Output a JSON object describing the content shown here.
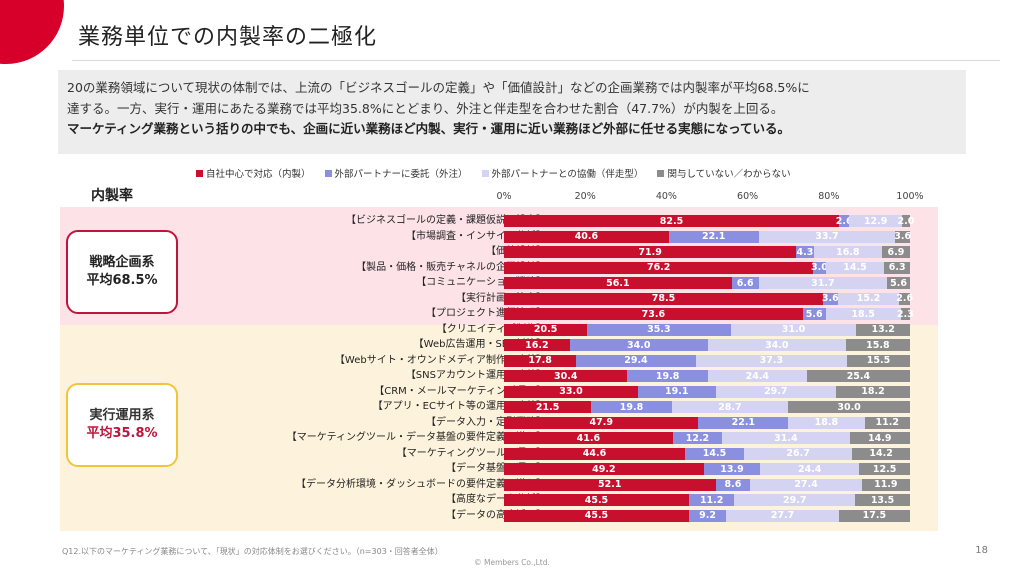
{
  "title": "業務単位での内製率の二極化",
  "summary": {
    "line1": "20の業務領域について現状の体制では、上流の「ビジネスゴールの定義」や「価値設計」などの企画業務では内製率が平均68.5%に",
    "line2": "達する。一方、実行・運用にあたる業務では平均35.8%にとどまり、外注と伴走型を合わせた割合（47.7%）が内製を上回る。",
    "line3": "マーケティング業務という括りの中でも、企画に近い業務ほど内製、実行・運用に近い業務ほど外部に任せる実態になっている。"
  },
  "share_label": "内製率",
  "groups": {
    "strategy": {
      "name": "戦略企画系",
      "avg": "平均68.5%"
    },
    "execution": {
      "name": "実行運用系",
      "avg": "平均35.8%"
    }
  },
  "footnote": "Q12.以下のマーケティング業務について、「現状」の対応体制をお選びください。（n=303・回答者全体）",
  "copyright": "© Members Co.,Ltd.",
  "page_number": "18",
  "colors": {
    "inhouse": "#c8102e",
    "outsource": "#8b8fe0",
    "partner": "#d4d4f2",
    "none": "#8c8c8c"
  },
  "chart_data": {
    "type": "bar",
    "orientation": "horizontal",
    "stacked": true,
    "percent_axis": {
      "ticks": [
        "0%",
        "20%",
        "40%",
        "60%",
        "80%",
        "100%"
      ],
      "range": [
        0,
        100
      ]
    },
    "legend_position": "top",
    "series": [
      {
        "name": "自社中心で対応（内製）",
        "color": "#c8102e",
        "text_color": "#ffffff"
      },
      {
        "name": "外部パートナーに委託（外注）",
        "color": "#8b8fe0",
        "text_color": "#ffffff"
      },
      {
        "name": "外部パートナーとの協働（伴走型）",
        "color": "#d4d4f2",
        "text_color": "#ffffff"
      },
      {
        "name": "関与していない／わからない",
        "color": "#8c8c8c",
        "text_color": "#ffffff"
      }
    ],
    "categories": [
      "【ビジネスゴールの定義・課題仮説の設定】",
      "【市場調査・インサイト分析】",
      "【価値設計】",
      "【製品・価格・販売チャネルの企画設計】",
      "【コミュニケーション戦略】",
      "【実行計画の策定】",
      "【プロジェクト進行管理】",
      "【クリエイティブ制作】",
      "【Web広告運用・SEO対策】",
      "【Webサイト・オウンドメディア制作・改善】",
      "【SNSアカウント運用・改善】",
      "【CRM・メールマーケティング運用】",
      "【アプリ・ECサイト等の運用・改善】",
      "【データ入力・定型業務】",
      "【マーケティングツール・データ基盤の要件定義・導入】",
      "【マーケティングツールの運用】",
      "【データ基盤の運用】",
      "【データ分析環境・ダッシュボードの要件定義・導入】",
      "【高度なデータ分析】",
      "【データの高度活用】"
    ],
    "values": [
      [
        82.5,
        2.6,
        12.9,
        2.0
      ],
      [
        40.6,
        22.1,
        33.7,
        3.6
      ],
      [
        71.9,
        4.3,
        16.8,
        6.9
      ],
      [
        76.2,
        3.0,
        14.5,
        6.3
      ],
      [
        56.1,
        6.6,
        31.7,
        5.6
      ],
      [
        78.5,
        3.6,
        15.2,
        2.6
      ],
      [
        73.6,
        5.6,
        18.5,
        2.3
      ],
      [
        20.5,
        35.3,
        31.0,
        13.2
      ],
      [
        16.2,
        34.0,
        34.0,
        15.8
      ],
      [
        17.8,
        29.4,
        37.3,
        15.5
      ],
      [
        30.4,
        19.8,
        24.4,
        25.4
      ],
      [
        33.0,
        19.1,
        29.7,
        18.2
      ],
      [
        21.5,
        19.8,
        28.7,
        30.0
      ],
      [
        47.9,
        22.1,
        18.8,
        11.2
      ],
      [
        41.6,
        12.2,
        31.4,
        14.9
      ],
      [
        44.6,
        14.5,
        26.7,
        14.2
      ],
      [
        49.2,
        13.9,
        24.4,
        12.5
      ],
      [
        52.1,
        8.6,
        27.4,
        11.9
      ],
      [
        45.5,
        11.2,
        29.7,
        13.5
      ],
      [
        45.5,
        9.2,
        27.7,
        17.5
      ]
    ]
  }
}
